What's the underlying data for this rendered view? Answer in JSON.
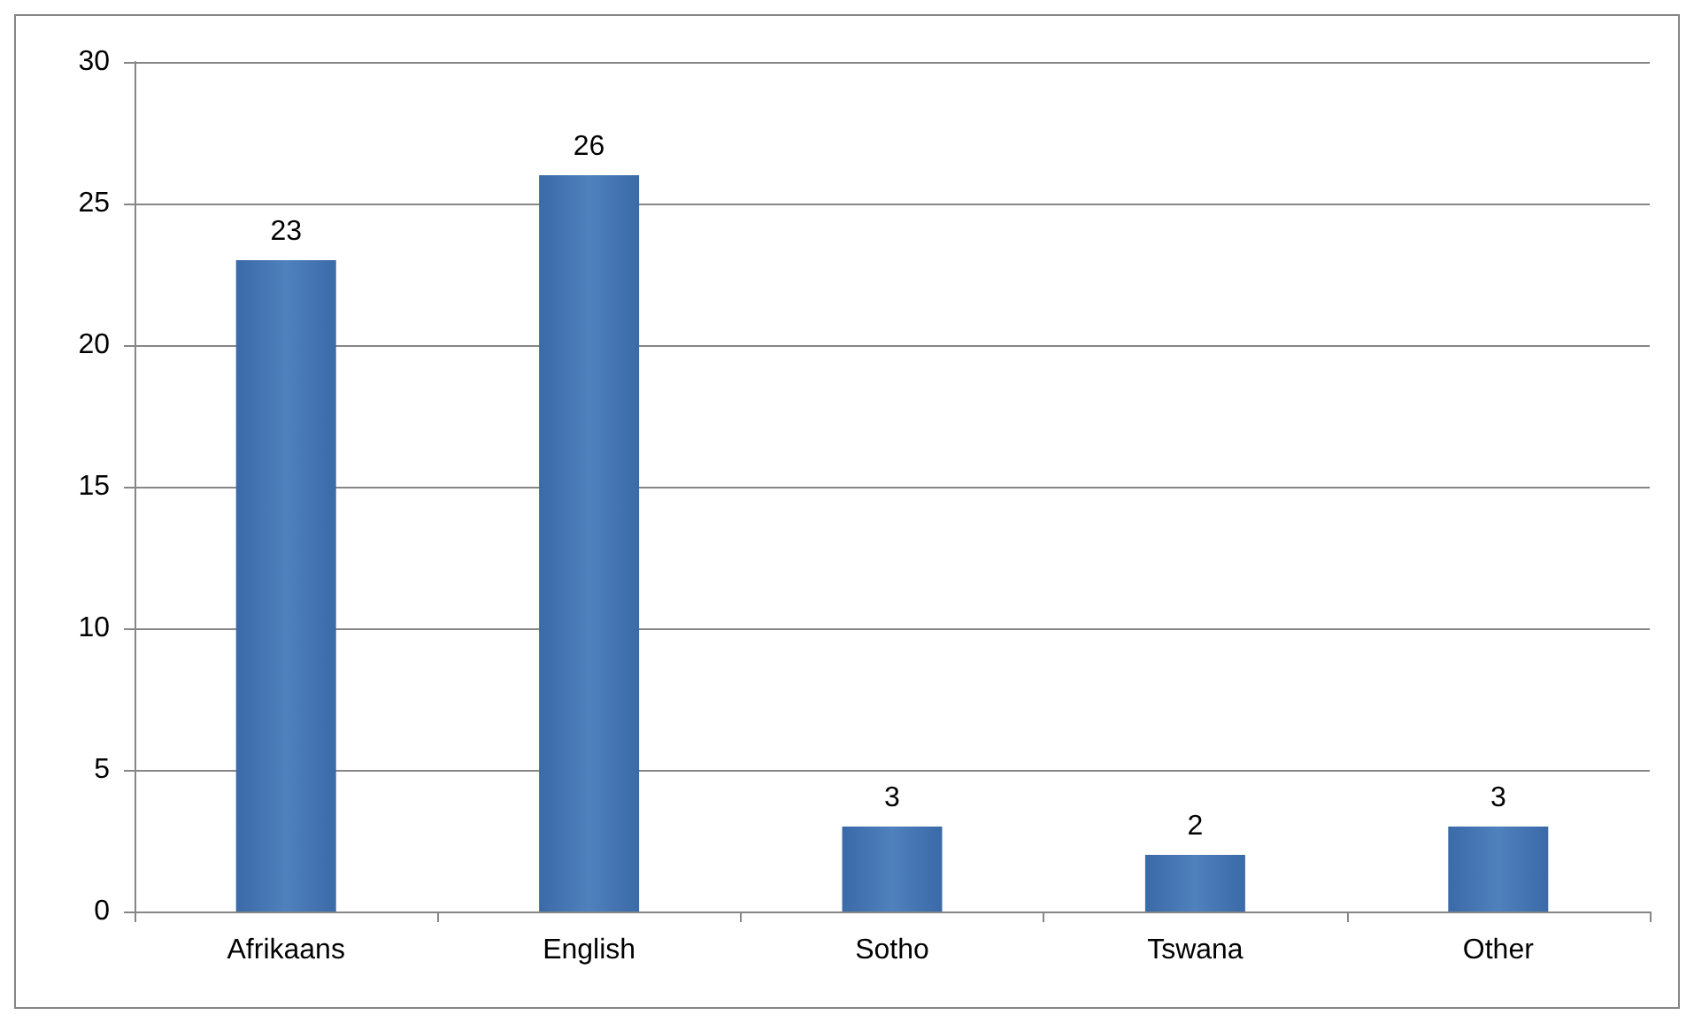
{
  "chart_data": {
    "type": "bar",
    "categories": [
      "Afrikaans",
      "English",
      "Sotho",
      "Tswana",
      "Other"
    ],
    "values": [
      23,
      26,
      3,
      2,
      3
    ],
    "color": "#4f81bd",
    "ylim": [
      0,
      30
    ],
    "yticks": [
      0,
      5,
      10,
      15,
      20,
      25,
      30
    ],
    "grid": "y",
    "data_labels": true
  }
}
